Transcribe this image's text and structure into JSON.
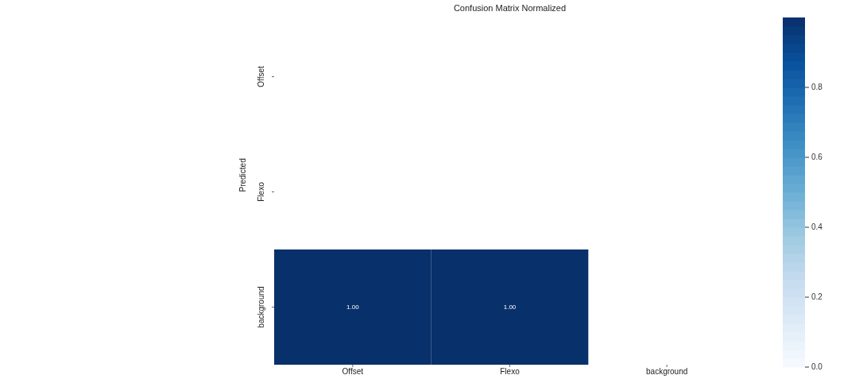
{
  "chart_data": {
    "type": "heatmap",
    "title": "Confusion Matrix Normalized",
    "ylabel": "Predicted",
    "categories": [
      "Offset",
      "Flexo",
      "background"
    ],
    "y_categories": [
      "Offset",
      "Flexo",
      "background"
    ],
    "cells": [
      [
        null,
        null,
        null
      ],
      [
        null,
        null,
        null
      ],
      [
        1.0,
        1.0,
        null
      ]
    ],
    "cell_labels": [
      [
        null,
        null,
        null
      ],
      [
        null,
        null,
        null
      ],
      [
        "1.00",
        "1.00",
        null
      ]
    ],
    "clim": [
      0,
      1
    ],
    "cticks": [
      {
        "value": 0,
        "label": "0.0"
      },
      {
        "value": 0.2,
        "label": "0.2"
      },
      {
        "value": 0.4,
        "label": "0.4"
      },
      {
        "value": 0.6,
        "label": "0.6"
      },
      {
        "value": 0.8,
        "label": "0.8"
      }
    ]
  }
}
